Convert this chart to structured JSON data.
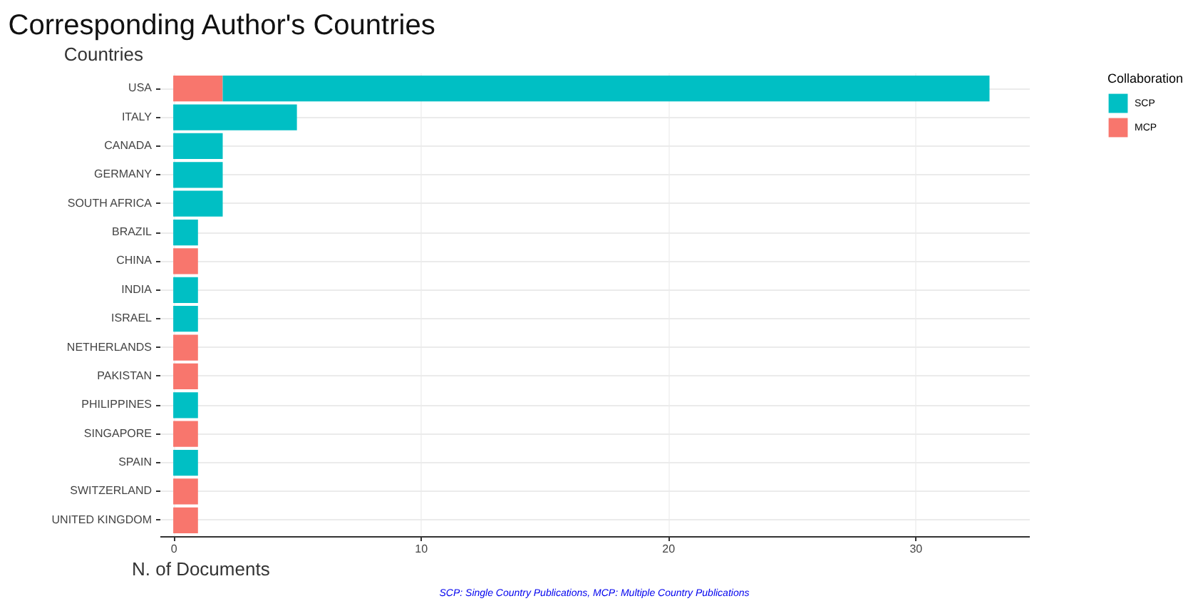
{
  "chart_data": {
    "type": "bar",
    "orientation": "horizontal",
    "stacked": true,
    "title": "Corresponding Author's Countries",
    "xlabel": "N. of Documents",
    "ylabel": "Countries",
    "legend_title": "Collaboration",
    "categories": [
      "USA",
      "ITALY",
      "CANADA",
      "GERMANY",
      "SOUTH AFRICA",
      "BRAZIL",
      "CHINA",
      "INDIA",
      "ISRAEL",
      "NETHERLANDS",
      "PAKISTAN",
      "PHILIPPINES",
      "SINGAPORE",
      "SPAIN",
      "SWITZERLAND",
      "UNITED KINGDOM"
    ],
    "series": [
      {
        "name": "MCP",
        "color": "#f8766d",
        "values": [
          2,
          null,
          null,
          null,
          null,
          null,
          1,
          null,
          null,
          1,
          1,
          null,
          1,
          null,
          1,
          1
        ]
      },
      {
        "name": "SCP",
        "color": "#00bfc4",
        "values": [
          31,
          5,
          2,
          2,
          2,
          1,
          null,
          1,
          1,
          null,
          null,
          1,
          null,
          1,
          null,
          null
        ]
      }
    ],
    "xlim": [
      -0.55,
      34.6
    ],
    "xticks": [
      0,
      10,
      20,
      30
    ],
    "grid": true,
    "legend": "right",
    "annotations": [
      "SCP: Single Country Publications, MCP: Multiple Country Publications"
    ]
  }
}
